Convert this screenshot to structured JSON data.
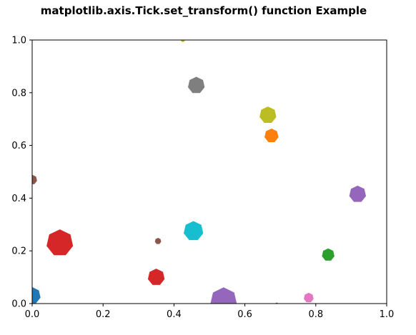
{
  "chart_data": {
    "type": "scatter",
    "title": "matplotlib.axis.Tick.set_transform() function Example",
    "xlabel": "",
    "ylabel": "",
    "xlim": [
      0,
      1
    ],
    "ylim": [
      0,
      1
    ],
    "x_ticks": [
      "0.0",
      "0.2",
      "0.4",
      "0.6",
      "0.8",
      "1.0"
    ],
    "y_ticks": [
      "0.0",
      "0.2",
      "0.4",
      "0.6",
      "0.8",
      "1.0"
    ],
    "grid": false,
    "legend": "none",
    "marker": "heptagon",
    "points": [
      {
        "x": 0.0,
        "y": 0.03,
        "size": 24,
        "color": "#1f77b4"
      },
      {
        "x": 0.675,
        "y": 0.637,
        "size": 20,
        "color": "#ff7f0e"
      },
      {
        "x": 0.835,
        "y": 0.185,
        "size": 18,
        "color": "#2ca02c"
      },
      {
        "x": 0.078,
        "y": 0.23,
        "size": 38,
        "color": "#d62728"
      },
      {
        "x": 0.35,
        "y": 0.1,
        "size": 24,
        "color": "#d62728"
      },
      {
        "x": 0.54,
        "y": 0.01,
        "size": 38,
        "color": "#9467bd"
      },
      {
        "x": 0.918,
        "y": 0.415,
        "size": 24,
        "color": "#9467bd"
      },
      {
        "x": 0.355,
        "y": 0.237,
        "size": 9,
        "color": "#8c564b"
      },
      {
        "x": 0.0,
        "y": 0.47,
        "size": 14,
        "color": "#8c564b"
      },
      {
        "x": 0.78,
        "y": 0.022,
        "size": 14,
        "color": "#e377c2"
      },
      {
        "x": 0.463,
        "y": 0.828,
        "size": 24,
        "color": "#7f7f7f"
      },
      {
        "x": 0.665,
        "y": 0.715,
        "size": 24,
        "color": "#bcbd22"
      },
      {
        "x": 0.425,
        "y": 1.0,
        "size": 6,
        "color": "#bcbd22"
      },
      {
        "x": 0.455,
        "y": 0.275,
        "size": 28,
        "color": "#17becf"
      },
      {
        "x": 0.69,
        "y": 0.0,
        "size": 3,
        "color": "#8c564b"
      }
    ]
  }
}
